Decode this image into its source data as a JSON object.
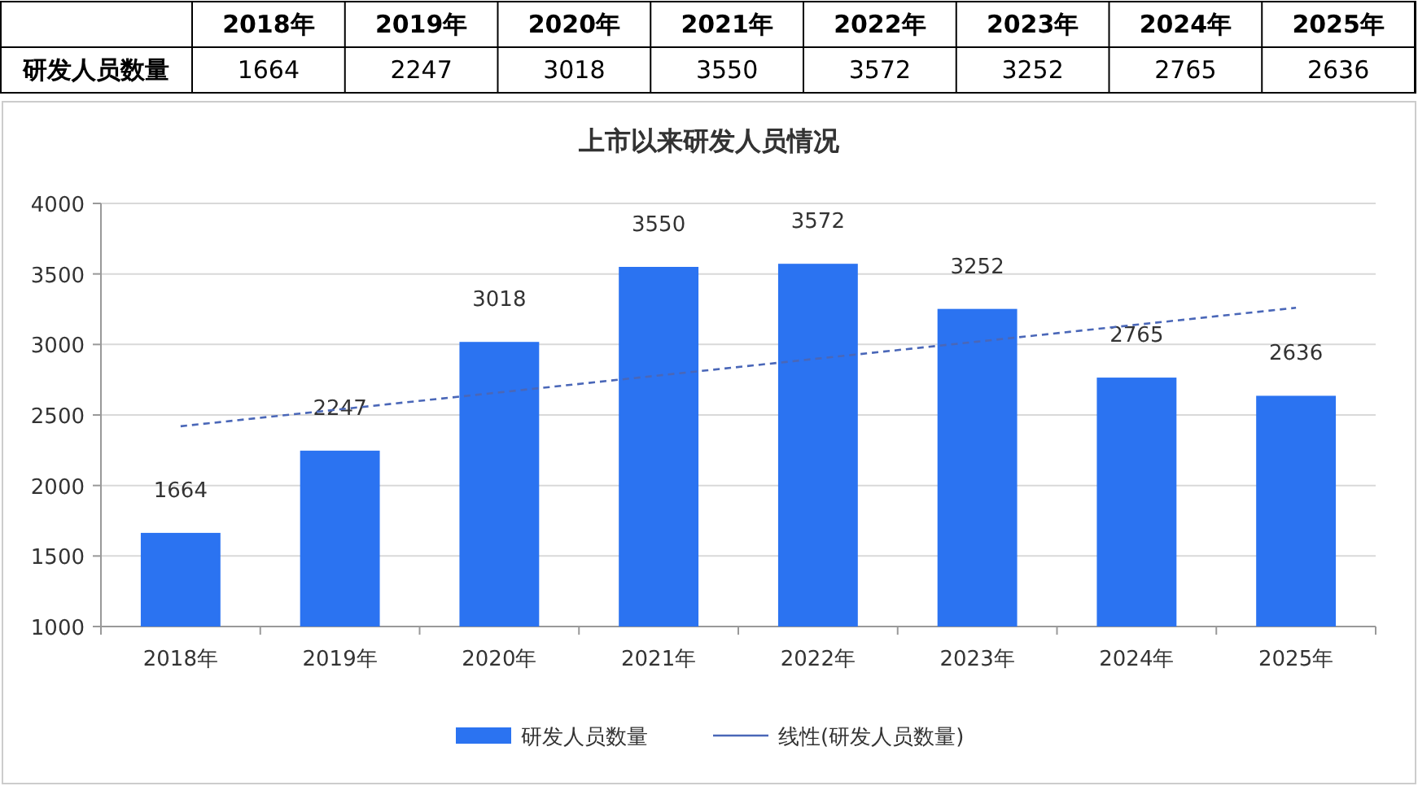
{
  "chart_data": {
    "type": "bar",
    "title": "上市以来研发人员情况",
    "categories": [
      "2018年",
      "2019年",
      "2020年",
      "2021年",
      "2022年",
      "2023年",
      "2024年",
      "2025年"
    ],
    "series": [
      {
        "name": "研发人员数量",
        "color": "#2b73f1",
        "values": [
          1664,
          2247,
          3018,
          3550,
          3572,
          3252,
          2765,
          2636
        ],
        "value_labels": [
          "1664",
          "2247",
          "3018",
          "3550",
          "3572",
          "3252",
          "2765",
          "2636"
        ]
      },
      {
        "name": "线性(研发人员数量)",
        "type": "line",
        "color": "#4a67b8",
        "line_style": "dashed",
        "values": [
          2420,
          2540,
          2660,
          2780,
          2900,
          3020,
          3140,
          3260
        ]
      }
    ],
    "ylim": [
      1000,
      4000
    ],
    "yticks": [
      1000,
      1500,
      2000,
      2500,
      3000,
      3500,
      4000
    ],
    "grid": "y",
    "legend": "bottom",
    "marker": "none"
  }
}
